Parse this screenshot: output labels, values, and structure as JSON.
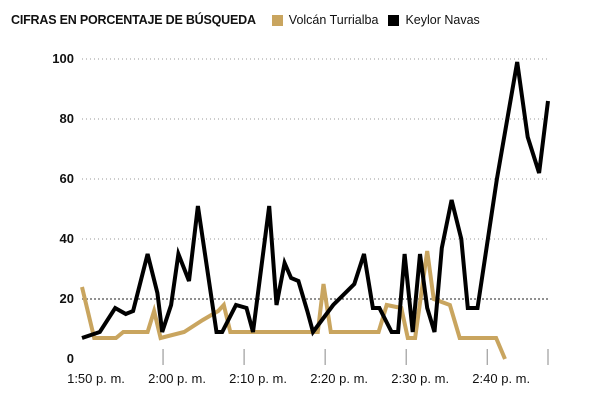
{
  "chart_data": {
    "type": "line",
    "title": "CIFRAS EN PORCENTAJE DE BÚSQUEDA",
    "xlabel": "",
    "ylabel": "",
    "ylim": [
      0,
      100
    ],
    "y_ticks": [
      0,
      20,
      40,
      60,
      80,
      100
    ],
    "x_ticks": [
      {
        "t": 0,
        "label": "1:50 p. m."
      },
      {
        "t": 10,
        "label": "2:00 p. m."
      },
      {
        "t": 20,
        "label": "2:10 p. m."
      },
      {
        "t": 30,
        "label": "2:20 p. m."
      },
      {
        "t": 40,
        "label": "2:30 p. m."
      },
      {
        "t": 50,
        "label": "2:40 p. m."
      }
    ],
    "grid": "horizontal dotted, dashed at 20",
    "legend": "top",
    "series": [
      {
        "name": "Volcán Turrialba",
        "color": "#c9a55f",
        "points": [
          [
            0,
            24
          ],
          [
            1.5,
            7
          ],
          [
            4.2,
            7
          ],
          [
            5.1,
            9
          ],
          [
            8.1,
            9
          ],
          [
            8.9,
            16
          ],
          [
            9.7,
            7
          ],
          [
            12.6,
            9
          ],
          [
            14.9,
            13
          ],
          [
            16.8,
            16
          ],
          [
            17.5,
            18
          ],
          [
            18.3,
            9
          ],
          [
            20.3,
            9
          ],
          [
            29.1,
            9
          ],
          [
            29.8,
            25
          ],
          [
            30.7,
            9
          ],
          [
            35.7,
            9
          ],
          [
            36.6,
            9
          ],
          [
            37.6,
            18
          ],
          [
            39.4,
            17
          ],
          [
            40.2,
            7
          ],
          [
            41.1,
            7
          ],
          [
            42.6,
            36
          ],
          [
            43.4,
            20
          ],
          [
            45.4,
            18
          ],
          [
            46.6,
            7
          ],
          [
            51.1,
            7
          ],
          [
            52.2,
            0
          ]
        ]
      },
      {
        "name": "Keylor Navas",
        "color": "#000000",
        "points": [
          [
            0,
            7
          ],
          [
            2.2,
            9
          ],
          [
            4.1,
            17
          ],
          [
            5.4,
            15
          ],
          [
            6.3,
            16
          ],
          [
            8.1,
            35
          ],
          [
            9.3,
            22
          ],
          [
            9.9,
            9
          ],
          [
            11.0,
            18
          ],
          [
            11.9,
            35
          ],
          [
            13.2,
            26
          ],
          [
            14.3,
            51
          ],
          [
            16.6,
            9
          ],
          [
            17.3,
            9
          ],
          [
            19.0,
            18
          ],
          [
            20.3,
            17
          ],
          [
            21.1,
            9
          ],
          [
            23.1,
            51
          ],
          [
            24.0,
            18
          ],
          [
            25.0,
            32
          ],
          [
            25.8,
            27
          ],
          [
            26.7,
            26
          ],
          [
            27.8,
            16
          ],
          [
            28.5,
            9
          ],
          [
            31.0,
            18
          ],
          [
            33.6,
            25
          ],
          [
            34.8,
            35
          ],
          [
            35.9,
            17
          ],
          [
            36.7,
            17
          ],
          [
            38.2,
            9
          ],
          [
            39.0,
            9
          ],
          [
            39.8,
            35
          ],
          [
            40.8,
            9
          ],
          [
            41.7,
            35
          ],
          [
            42.6,
            17
          ],
          [
            43.5,
            9
          ],
          [
            44.4,
            37
          ],
          [
            45.6,
            53
          ],
          [
            46.8,
            40
          ],
          [
            47.6,
            17
          ],
          [
            48.8,
            17
          ],
          [
            51.2,
            60
          ],
          [
            53.7,
            99
          ],
          [
            55.0,
            74
          ],
          [
            56.4,
            62
          ],
          [
            57.5,
            86
          ]
        ]
      }
    ]
  }
}
